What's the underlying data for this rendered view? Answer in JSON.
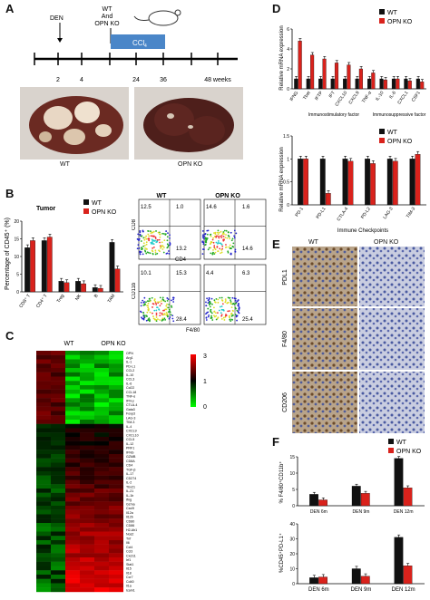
{
  "panels": {
    "A": {
      "letter": "A",
      "den_label": "DEN",
      "group_label_line1": "WT",
      "group_label_line2": "And",
      "group_label_line3": "OPN KO",
      "drug_label": "CCl",
      "drug_subscript": "4",
      "timeline_ticks": [
        "2",
        "4",
        "24",
        "36",
        "48 weeks"
      ],
      "photo_labels": [
        "WT",
        "OPN KO"
      ]
    },
    "B": {
      "letter": "B",
      "tumor_label": "Tumor",
      "legend": [
        "WT",
        "OPN KO"
      ],
      "ylabel": "Percentage of CD45⁺ (%)",
      "flow_col_labels": [
        "WT",
        "OPN KO"
      ],
      "flow_top_axes": {
        "x": "CD4",
        "y": "CD8"
      },
      "flow_bottom_axes": {
        "x": "F4/80",
        "y": "CD11b"
      },
      "flow_top_wt": [
        "12.5",
        "1.0",
        "13.2"
      ],
      "flow_top_ko": [
        "14.6",
        "1.6",
        "14.6"
      ],
      "flow_bottom_wt": [
        "10.1",
        "15.3",
        "28.4"
      ],
      "flow_bottom_ko": [
        "4.4",
        "6.3",
        "25.4"
      ],
      "sig": "***"
    },
    "C": {
      "letter": "C",
      "col_labels": [
        "WT",
        "OPN KO"
      ],
      "scale_labels": [
        "3",
        "1",
        "0"
      ],
      "genes": [
        "OPN",
        "Arg1",
        "IL-1",
        "PD-L1",
        "CCL2",
        "IL-10",
        "CCL3",
        "IL-6",
        "Ccl22",
        "CCL18",
        "TNF-α",
        "IFN-γ",
        "CTLA-4",
        "Gata3",
        "Foxp3",
        "LAG-3",
        "TIM-3",
        "IL-4",
        "CXCL9",
        "CXCL10",
        "CCL5",
        "IL-12",
        "PRF1",
        "IFNG",
        "GZMB",
        "CD8A",
        "CD4",
        "TGF-β",
        "IL-17",
        "CD274",
        "IL-2",
        "Tbx21",
        "IL-21",
        "IL-1b",
        "Ifng",
        "Gzma",
        "Cxcl9",
        "Il12a",
        "Il12b",
        "CD80",
        "CD86",
        "H2-Ab1",
        "Nos2",
        "Tnf",
        "Il6",
        "Ccl4",
        "Ccl3",
        "Cxcl11",
        "Irf1",
        "Stat1",
        "Il15",
        "Il18",
        "Ccr7",
        "Cd40",
        "Il1a",
        "Icam1"
      ]
    },
    "D": {
      "letter": "D",
      "legend": [
        "WT",
        "OPN KO"
      ],
      "top_ylabel": "Relative mRNA expression",
      "bottom_ylabel": "Relative mRNA expression",
      "top_group1": "Immunostimulatory factor",
      "top_group2": "Immunosuppressive factor",
      "bottom_group": "Immune Checkpoints"
    },
    "E": {
      "letter": "E",
      "col_labels": [
        "WT",
        "OPN KO"
      ],
      "row_labels": [
        "PDL1",
        "F4/80",
        "CD206"
      ]
    },
    "F": {
      "letter": "F",
      "legend": [
        "WT",
        "OPN KO"
      ],
      "top_ylabel": "% F4/80⁺CD11b⁺",
      "bottom_ylabel": "%CD45⁺PD-L1⁺"
    }
  },
  "colors": {
    "wt": "#111111",
    "ko": "#d9221c"
  },
  "chart_data": [
    {
      "id": "B-bar",
      "type": "bar",
      "categories": [
        "CD8⁺ T",
        "CD4⁺ T",
        "Treg",
        "NK",
        "B",
        "TAM"
      ],
      "series": [
        {
          "name": "WT",
          "values": [
            12.5,
            14.5,
            3.0,
            3.0,
            1.2,
            14.0
          ]
        },
        {
          "name": "OPN KO",
          "values": [
            14.5,
            15.5,
            2.6,
            2.3,
            1.0,
            6.5
          ]
        }
      ],
      "ylim": [
        0,
        20
      ],
      "yticks": [
        0,
        5,
        10,
        15,
        20
      ]
    },
    {
      "id": "D-top",
      "type": "bar",
      "categories": [
        "IFNG",
        "Tbet",
        "IFTP",
        "IFT",
        "CXCL10",
        "CXCL9",
        "TNF-α",
        "IL-10",
        "IL-6",
        "CXCL1",
        "CSF1"
      ],
      "series": [
        {
          "name": "WT",
          "values": [
            1,
            1,
            1,
            1,
            1,
            1,
            1,
            1,
            1,
            1,
            1
          ]
        },
        {
          "name": "OPN KO",
          "values": [
            4.8,
            3.4,
            3.0,
            2.6,
            2.4,
            2.0,
            1.6,
            0.9,
            1.0,
            0.8,
            0.7
          ]
        }
      ],
      "ylim": [
        0,
        6
      ],
      "yticks": [
        0,
        2,
        4,
        6
      ]
    },
    {
      "id": "D-bottom",
      "type": "bar",
      "categories": [
        "PD-1",
        "PD-L1",
        "CTLA-4",
        "PD-L2",
        "LAG-3",
        "TIM-3"
      ],
      "series": [
        {
          "name": "WT",
          "values": [
            1.0,
            1.0,
            1.0,
            1.0,
            1.0,
            1.0
          ]
        },
        {
          "name": "OPN KO",
          "values": [
            1.0,
            0.25,
            0.95,
            0.9,
            0.95,
            1.1
          ]
        }
      ],
      "ylim": [
        0,
        1.5
      ],
      "yticks": [
        0.0,
        0.5,
        1.0,
        1.5
      ]
    },
    {
      "id": "F-top",
      "type": "bar",
      "categories": [
        "DEN 6m",
        "DEN 9m",
        "DEN 12m"
      ],
      "series": [
        {
          "name": "WT",
          "values": [
            3.5,
            6.0,
            14.5
          ]
        },
        {
          "name": "OPN KO",
          "values": [
            1.8,
            3.8,
            5.5
          ]
        }
      ],
      "ylim": [
        0,
        15
      ],
      "yticks": [
        0,
        5,
        10,
        15
      ]
    },
    {
      "id": "F-bottom",
      "type": "bar",
      "categories": [
        "DEN 6m",
        "DEN 9m",
        "DEN 12m"
      ],
      "series": [
        {
          "name": "WT",
          "values": [
            4.0,
            10.0,
            31.0
          ]
        },
        {
          "name": "OPN KO",
          "values": [
            4.5,
            5.0,
            12.0
          ]
        }
      ],
      "ylim": [
        0,
        40
      ],
      "yticks": [
        0,
        10,
        20,
        30,
        40
      ]
    }
  ]
}
